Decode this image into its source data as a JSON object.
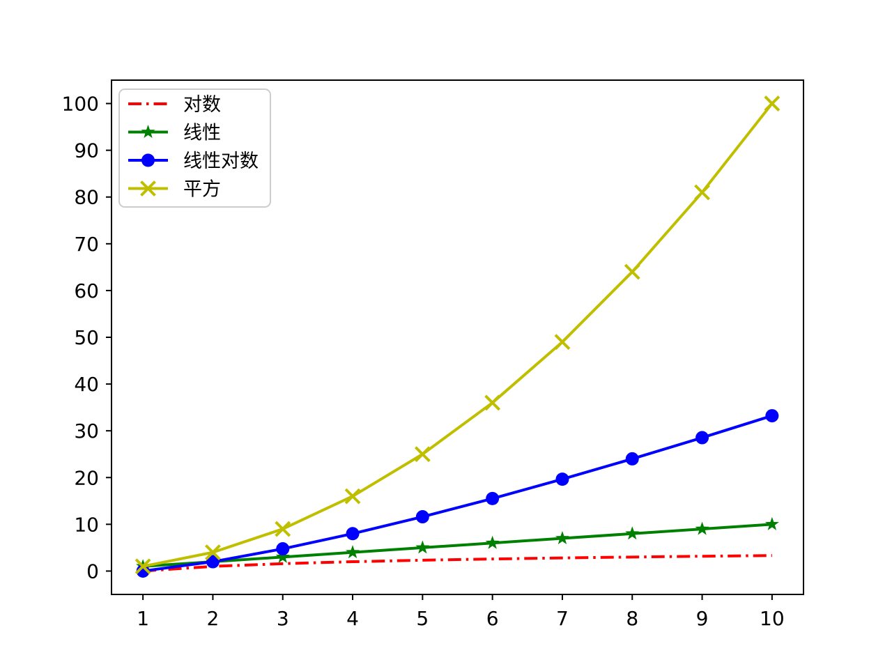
{
  "figure": {
    "background": "#ffffff",
    "axes": {
      "xlim": [
        0.55,
        10.45
      ],
      "ylim": [
        -5,
        105
      ],
      "xticks": [
        1,
        2,
        3,
        4,
        5,
        6,
        7,
        8,
        9,
        10
      ],
      "yticks": [
        0,
        10,
        20,
        30,
        40,
        50,
        60,
        70,
        80,
        90,
        100
      ],
      "spine_color": "#000000",
      "tick_color": "#000000"
    }
  },
  "chart_data": {
    "type": "line",
    "title": "",
    "xlabel": "",
    "ylabel": "",
    "grid": false,
    "x": [
      1,
      2,
      3,
      4,
      5,
      6,
      7,
      8,
      9,
      10
    ],
    "series": [
      {
        "name": "对数",
        "values": [
          0,
          1,
          1.585,
          2,
          2.322,
          2.585,
          2.807,
          3,
          3.17,
          3.322
        ],
        "color": "#ff0000",
        "linestyle": "dashdot",
        "marker": "none"
      },
      {
        "name": "线性",
        "values": [
          1,
          2,
          3,
          4,
          5,
          6,
          7,
          8,
          9,
          10
        ],
        "color": "#008000",
        "linestyle": "solid",
        "marker": "star"
      },
      {
        "name": "线性对数",
        "values": [
          0,
          2,
          4.755,
          8,
          11.61,
          15.51,
          19.651,
          24,
          28.529,
          33.219
        ],
        "color": "#0000ff",
        "linestyle": "solid",
        "marker": "circle"
      },
      {
        "name": "平方",
        "values": [
          1,
          4,
          9,
          16,
          25,
          36,
          49,
          64,
          81,
          100
        ],
        "color": "#bfbf00",
        "linestyle": "solid",
        "marker": "x"
      }
    ],
    "legend": {
      "position": "upper-left",
      "entries": [
        "对数",
        "线性",
        "线性对数",
        "平方"
      ],
      "edge_color": "#cccccc",
      "face_color": "#ffffff"
    }
  }
}
